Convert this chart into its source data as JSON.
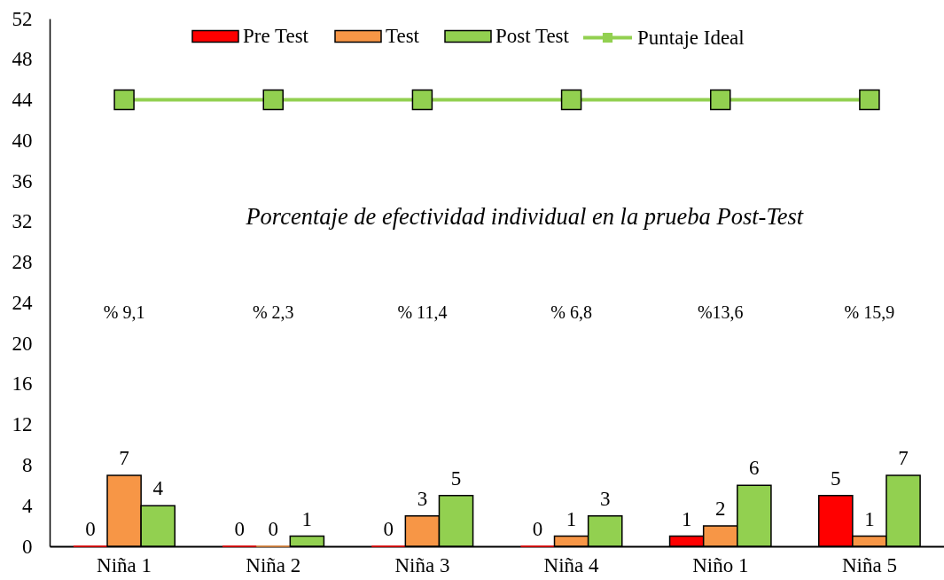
{
  "chart_data": {
    "type": "bar",
    "categories": [
      "Niña 1",
      "Niña 2",
      "Niña 3",
      "Niña 4",
      "Niño 1",
      "Niña 5"
    ],
    "series": [
      {
        "name": "Pre Test",
        "color": "#ff0000",
        "values": [
          0,
          0,
          0,
          0,
          1,
          5
        ],
        "value_labels": [
          "0",
          "0",
          "0",
          "0",
          "1",
          "5"
        ]
      },
      {
        "name": "Test",
        "color": "#f79646",
        "values": [
          7,
          0,
          3,
          1,
          2,
          1
        ],
        "value_labels": [
          "7",
          "0",
          "3",
          "1",
          "2",
          "1"
        ]
      },
      {
        "name": "Post Test",
        "color": "#92d050",
        "values": [
          4,
          1,
          5,
          3,
          6,
          7
        ],
        "value_labels": [
          "4",
          "1",
          "5",
          "3",
          "6",
          "7"
        ]
      },
      {
        "name": "Puntaje Ideal",
        "type": "line",
        "color": "#92d050",
        "marker": "square",
        "values": [
          44,
          44,
          44,
          44,
          44,
          44
        ]
      }
    ],
    "ylim": [
      0,
      52
    ],
    "yticks": [
      0,
      4,
      8,
      12,
      16,
      20,
      24,
      28,
      32,
      36,
      40,
      44,
      48,
      52
    ],
    "grid": false,
    "legend": "top",
    "annotations": [
      "Porcentaje de efectividad individual en la prueba Post-Test",
      "% 9,1",
      "% 2,3",
      "% 11,4",
      "% 6,8",
      "%13,6",
      "% 15,9"
    ]
  }
}
